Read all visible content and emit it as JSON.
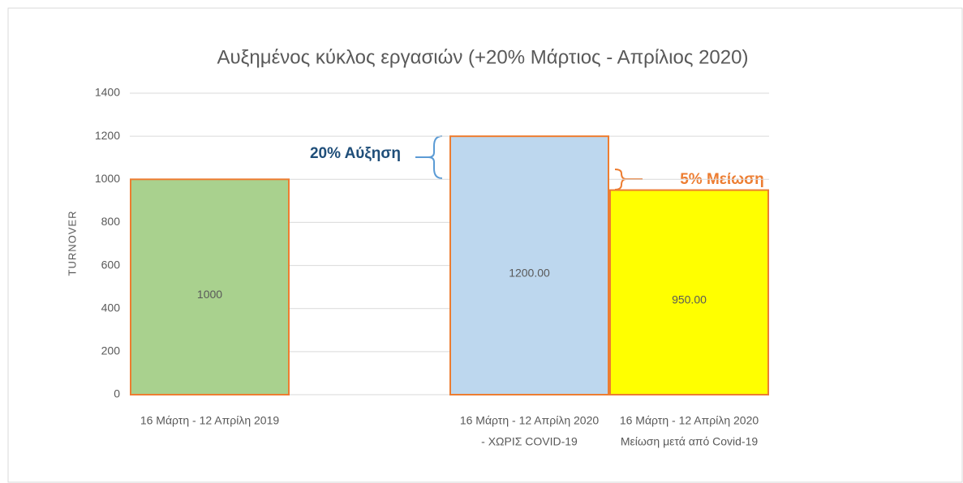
{
  "chart_data": {
    "type": "bar",
    "title": "Αυξημένος κύκλος εργασιών (+20% Μάρτιος - Απρίλιος 2020)",
    "y_label": "TURNOVER",
    "categories": [
      [
        "16 Μάρτη - 12 Απρίλη 2019"
      ],
      null,
      [
        "16 Μάρτη - 12 Απρίλη 2020",
        "- ΧΩΡΙΣ COVID-19"
      ],
      [
        "16 Μάρτη - 12 Απρίλη 2020",
        "Μείωση μετά από Covid-19"
      ]
    ],
    "values": [
      1000,
      null,
      1200,
      950
    ],
    "value_labels": [
      "1000",
      null,
      "1200.00",
      "950.00"
    ],
    "colors": [
      "#a9d18e",
      null,
      "#bdd7ee",
      "#ffff00"
    ],
    "edge_color": "#ed7d31",
    "ylim": [
      0,
      1400
    ],
    "yticks": [
      0,
      200,
      400,
      600,
      800,
      1000,
      1200,
      1400
    ],
    "grid": true,
    "annotations": [
      "20% Αύξηση",
      "5% Μείωση"
    ]
  }
}
